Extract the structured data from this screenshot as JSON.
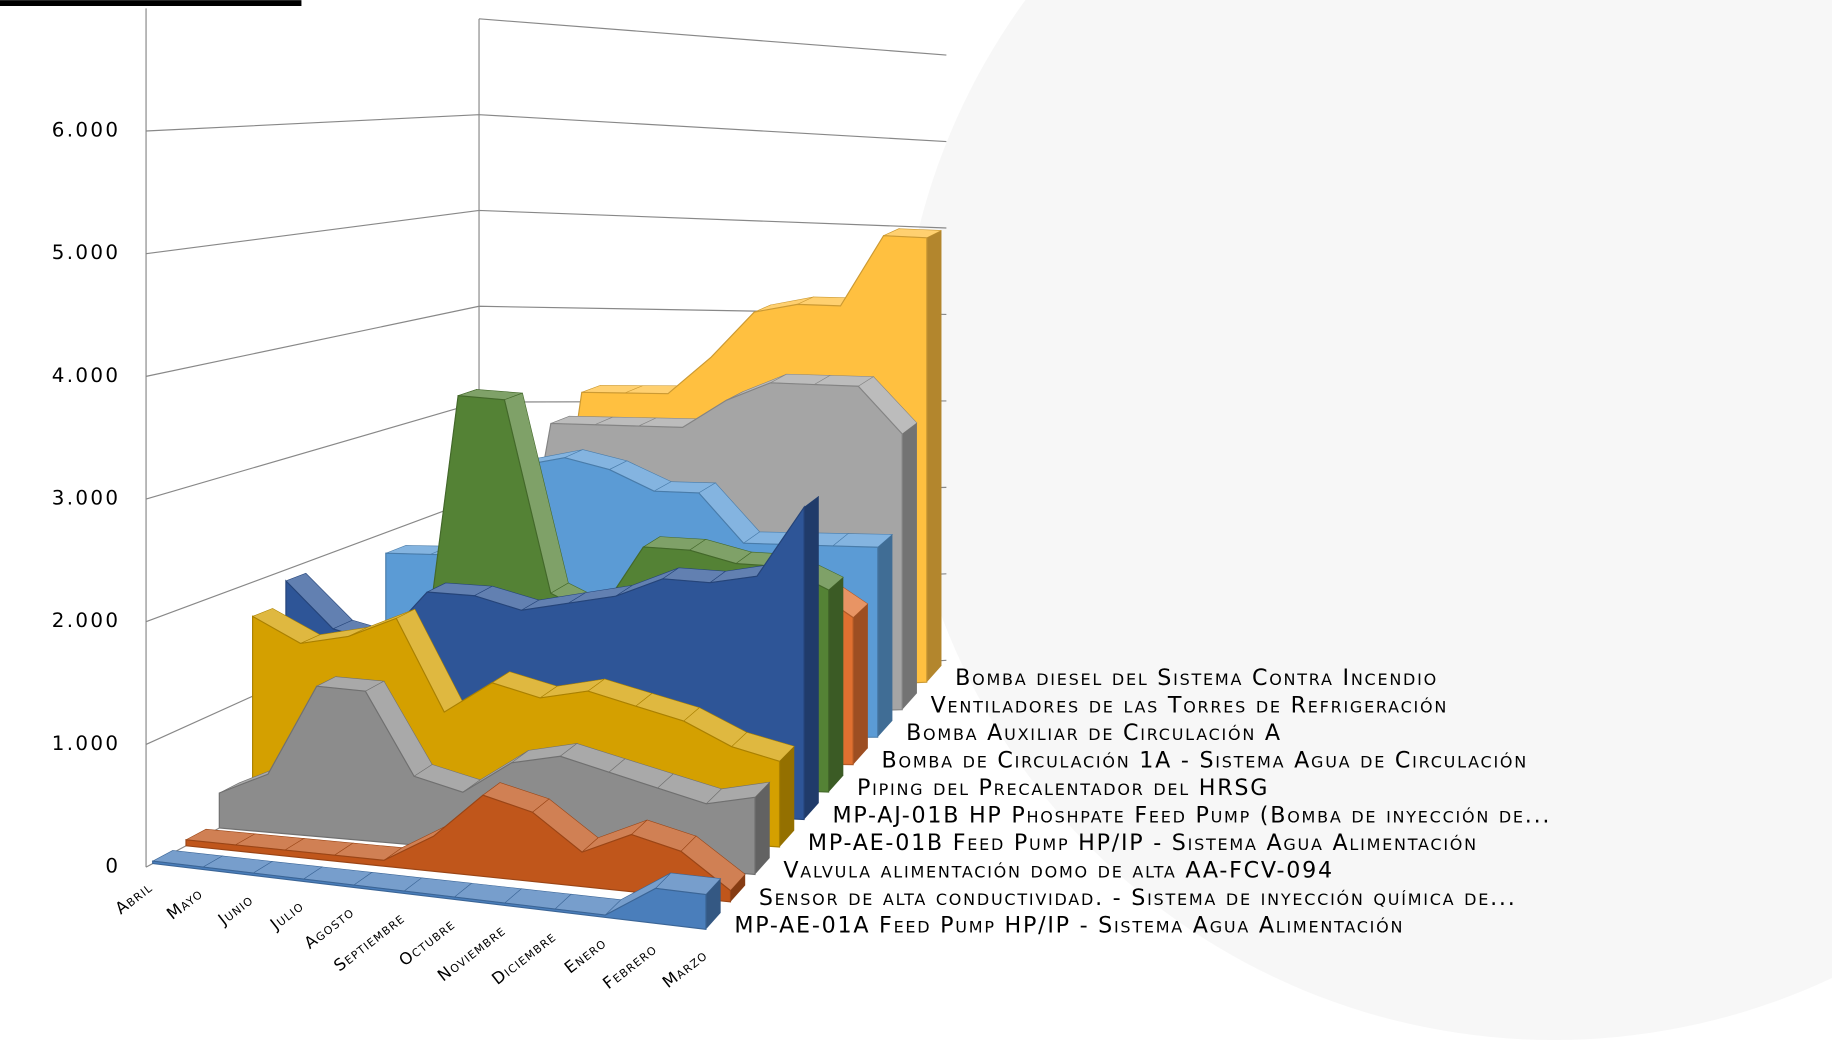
{
  "chart_data": {
    "type": "area3d",
    "categories": [
      "Abril",
      "Mayo",
      "Junio",
      "Julio",
      "Agosto",
      "Septiembre",
      "Octubre",
      "Noviembre",
      "Diciembre",
      "Enero",
      "Febrero",
      "Marzo"
    ],
    "series": [
      {
        "name": "MP-AE-01A Feed Pump HP/IP - Sistema Agua Alimentación",
        "color": "#4a7ebb",
        "values": [
          20,
          20,
          20,
          20,
          20,
          20,
          20,
          20,
          20,
          20,
          300,
          300
        ]
      },
      {
        "name": "Sensor de alta conductividad. - Sistema de inyección química de...",
        "color": "#c0561b",
        "values": [
          50,
          50,
          50,
          50,
          50,
          300,
          700,
          600,
          300,
          500,
          400,
          100
        ]
      },
      {
        "name": "Valvula alimentación domo de alta AA-FCV-094",
        "color": "#8c8c8c",
        "values": [
          300,
          500,
          1300,
          1300,
          600,
          500,
          800,
          900,
          800,
          700,
          600,
          700
        ]
      },
      {
        "name": "MP-AE-01B Feed Pump HP/IP - Sistema Agua Alimentación",
        "color": "#d4a000",
        "values": [
          1700,
          1500,
          1600,
          1800,
          1000,
          1300,
          1200,
          1300,
          1200,
          1100,
          900,
          800
        ]
      },
      {
        "name": "MP-AJ-01B HP Phoshpate Feed Pump (Bomba de inyección de...",
        "color": "#2e5597",
        "values": [
          1900,
          1500,
          1400,
          1900,
          1900,
          1800,
          1900,
          2000,
          2200,
          2200,
          2300,
          3000
        ]
      },
      {
        "name": "Piping del Precalentador del HRSG",
        "color": "#548235",
        "values": [
          200,
          200,
          200,
          3600,
          3600,
          1800,
          1600,
          2300,
          2300,
          2200,
          2200,
          2000
        ]
      },
      {
        "name": "Bomba de Circulación 1A - Sistema Agua de Circulación",
        "color": "#e07030",
        "values": [
          100,
          100,
          100,
          100,
          100,
          1500,
          1600,
          1500,
          1500,
          2000,
          1800,
          1500
        ]
      },
      {
        "name": "Bomba Auxiliar de Circulación A",
        "color": "#5b9bd5",
        "values": [
          1800,
          1800,
          1800,
          2700,
          2800,
          2700,
          2500,
          2500,
          2000,
          2000,
          2000,
          2000
        ]
      },
      {
        "name": "Ventiladores de las Torres de Refrigeración",
        "color": "#a5a5a5",
        "values": [
          500,
          500,
          500,
          3000,
          3000,
          3000,
          3000,
          3300,
          3500,
          3500,
          3500,
          3000
        ]
      },
      {
        "name": "Bomba diesel del Sistema Contra Incendio",
        "color": "#ffc040",
        "values": [
          100,
          100,
          100,
          3200,
          3200,
          3200,
          3600,
          4100,
          4200,
          4200,
          5000,
          5000
        ]
      }
    ],
    "ylim": [
      0,
      7000
    ],
    "yticks": [
      0,
      {
        "value": 1000,
        "label": "1.000"
      },
      {
        "value": 2000,
        "label": "2.000"
      },
      {
        "value": 3000,
        "label": "3.000"
      },
      {
        "value": 4000,
        "label": "4.000"
      },
      {
        "value": 5000,
        "label": "5.000"
      },
      {
        "value": 6000,
        "label": "6.000"
      }
    ],
    "grid": true
  }
}
